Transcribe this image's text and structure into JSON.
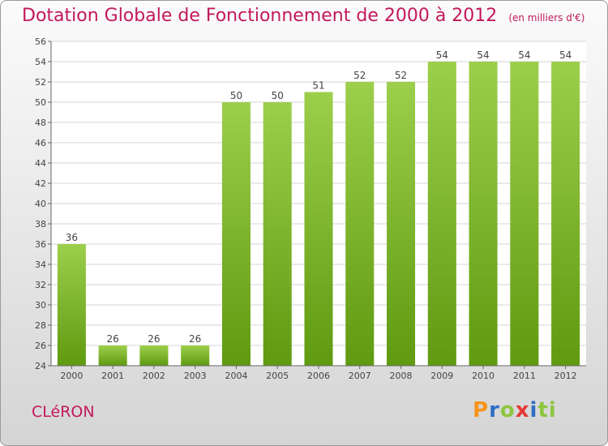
{
  "chart_data": {
    "type": "bar",
    "title": "Dotation Globale de Fonctionnement de 2000 à 2012",
    "subtitle": "(en milliers d'€)",
    "categories": [
      "2000",
      "2001",
      "2002",
      "2003",
      "2004",
      "2005",
      "2006",
      "2007",
      "2008",
      "2009",
      "2010",
      "2011",
      "2012"
    ],
    "values": [
      36,
      26,
      26,
      26,
      50,
      50,
      51,
      52,
      52,
      54,
      54,
      54,
      54
    ],
    "ylim": [
      24,
      56
    ],
    "yticks": [
      24,
      26,
      28,
      30,
      32,
      34,
      36,
      38,
      40,
      42,
      44,
      46,
      48,
      50,
      52,
      54,
      56
    ],
    "grid": true,
    "bar_color_top": "#9ccf4c",
    "bar_color_bottom": "#5f9a10"
  },
  "commune": "CLéRON",
  "logo": {
    "text": "Proxiti",
    "parts": [
      "P",
      "r",
      "o",
      "x",
      "i",
      "ti"
    ]
  }
}
